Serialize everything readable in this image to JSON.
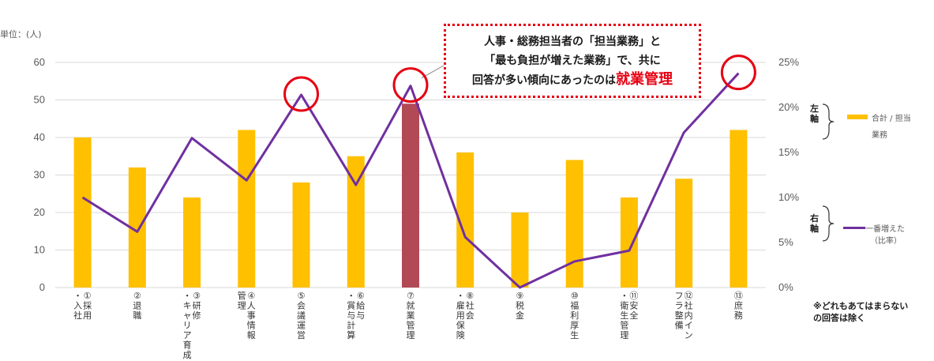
{
  "chart_data": {
    "type": "bar",
    "unit_label": "単位：(人)",
    "categories": [
      "①採用・入社",
      "②退職",
      "③研修・キャリア育成",
      "④人事情報管理",
      "⑤会議運営",
      "⑥給与・賞与計算",
      "⑦就業管理",
      "⑧社会・雇用保険",
      "⑨税金",
      "⑩福利厚生",
      "⑪安全・衛生管理",
      "⑫社内インフラ整備",
      "⑬庶務"
    ],
    "series": [
      {
        "name": "合計 / 担当業務",
        "axis": "left",
        "type": "bar",
        "values": [
          40,
          32,
          24,
          42,
          28,
          35,
          49,
          36,
          20,
          34,
          24,
          29,
          42
        ],
        "color": "#FFC000"
      },
      {
        "name": "一番増えた（比率）",
        "axis": "right",
        "type": "line",
        "values": [
          10.0,
          6.2,
          16.6,
          11.9,
          21.4,
          11.4,
          22.4,
          5.6,
          0.0,
          2.9,
          4.1,
          17.2,
          23.8
        ],
        "color": "#7030A0"
      }
    ],
    "highlight": {
      "index": 6,
      "color": "#B24A56"
    },
    "circled_indices": [
      4,
      6,
      12
    ],
    "left_axis": {
      "ylim": [
        0,
        60
      ],
      "ticks": [
        "0",
        "10",
        "20",
        "30",
        "40",
        "50",
        "60"
      ]
    },
    "right_axis": {
      "ylim": [
        0,
        25
      ],
      "ticks": [
        "0%",
        "5%",
        "10%",
        "15%",
        "20%",
        "25%"
      ]
    },
    "grid": true,
    "legend": {
      "left_axis_tag": "左軸",
      "right_axis_tag": "右軸",
      "bar_label_1": "合計 / 担当",
      "bar_label_2": "業務",
      "line_label_1": "一番増えた",
      "line_label_2": "（比率）"
    },
    "callout": {
      "line1": "人事・総務担当者の「担当業務」と",
      "line2": "「最も負担が増えた業務」で、共に",
      "line3_prefix": "回答が多い傾向にあったのは",
      "line3_highlight": "就業管理"
    },
    "note": {
      "line1": "※どれもあてはまらない",
      "line2": "の回答は除く"
    }
  }
}
